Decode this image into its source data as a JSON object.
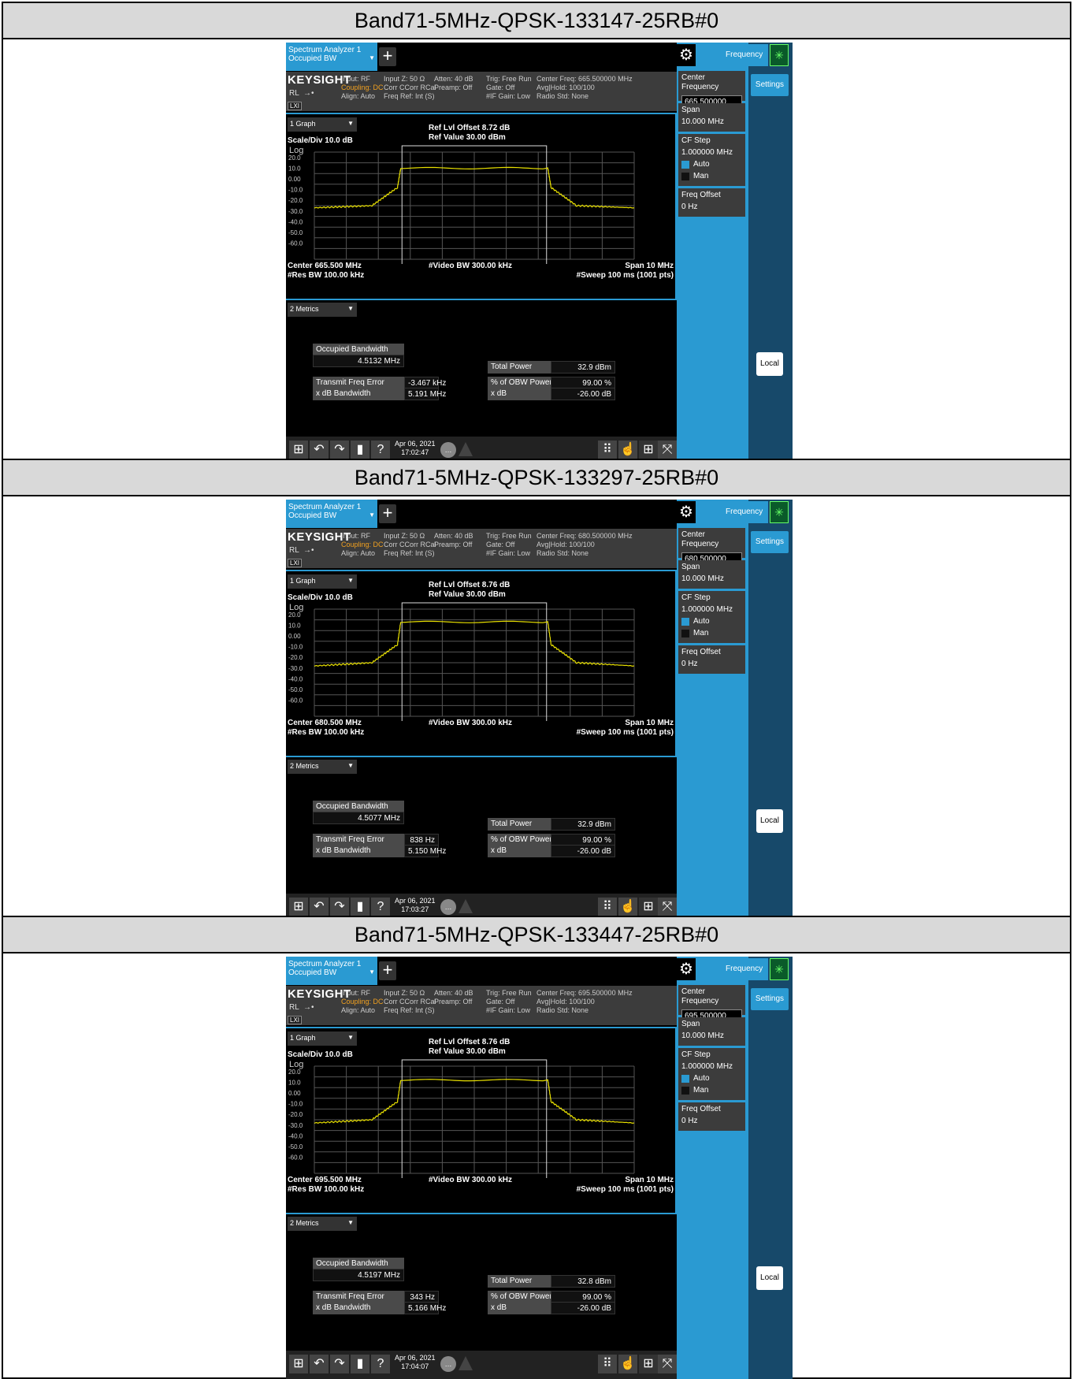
{
  "bands": [
    {
      "title": "Band71-5MHz-QPSK-133147-25RB#0",
      "app_tab": [
        "Spectrum Analyzer 1",
        "Occupied BW"
      ],
      "info": {
        "brand": "KEYSIGHT",
        "rl": "RL",
        "lxi": "LXI",
        "col1": [
          "Input: RF",
          "Coupling: DC",
          "Align: Auto"
        ],
        "col2": [
          "Input Z: 50 Ω",
          "Corr CCorr RCal",
          "Freq Ref: Int (S)"
        ],
        "col3": [
          "Atten: 40 dB",
          "Preamp: Off"
        ],
        "col4": [
          "Trig: Free Run",
          "Gate: Off",
          "#IF Gain: Low"
        ],
        "col5": [
          "Center Freq: 665.500000 MHz",
          "Avg|Hold: 100/100",
          "Radio Std: None"
        ]
      },
      "graph": {
        "selector": "1 Graph",
        "ref_offset": "Ref Lvl Offset 8.72 dB",
        "ref_value": "Ref Value 30.00 dBm",
        "scale": "Scale/Div 10.0 dB",
        "log": "Log",
        "y_labels": [
          "20.0",
          "10.0",
          "0.00",
          "-10.0",
          "-20.0",
          "-30.0",
          "-40.0",
          "-50.0",
          "-60.0"
        ],
        "center": "Center 665.500 MHz",
        "res_bw": "#Res BW 100.00 kHz",
        "video_bw": "#Video BW 300.00 kHz",
        "span": "Span 10 MHz",
        "sweep": "#Sweep 100 ms (1001 pts)",
        "trace_color": "#e8e000"
      },
      "metrics": {
        "selector": "2 Metrics",
        "obw_label": "Occupied Bandwidth",
        "obw_value": "4.5132 MHz",
        "tfe_label": "Transmit Freq Error",
        "tfe_value": "-3.467 kHz",
        "xdbbw_label": "x dB Bandwidth",
        "xdbbw_value": "5.191 MHz",
        "tp_label": "Total Power",
        "tp_value": "32.9 dBm",
        "pobw_label": "% of OBW Power",
        "pobw_value": "99.00 %",
        "xdb_label": "x dB",
        "xdb_value": "-26.00 dB"
      },
      "taskbar": {
        "date": "Apr 06, 2021",
        "time": "17:02:47"
      },
      "panel": {
        "menu": "Frequency",
        "settings": "Settings",
        "cf_label": "Center Frequency",
        "cf_value": "665.500000 MHz",
        "span_label": "Span",
        "span_value": "10.000 MHz",
        "cfstep_label": "CF Step",
        "cfstep_value": "1.000000 MHz",
        "auto": "Auto",
        "man": "Man",
        "foffset_label": "Freq Offset",
        "foffset_value": "0 Hz",
        "local": "Local"
      }
    },
    {
      "title": "Band71-5MHz-QPSK-133297-25RB#0",
      "app_tab": [
        "Spectrum Analyzer 1",
        "Occupied BW"
      ],
      "info": {
        "brand": "KEYSIGHT",
        "rl": "RL",
        "lxi": "LXI",
        "col1": [
          "Input: RF",
          "Coupling: DC",
          "Align: Auto"
        ],
        "col2": [
          "Input Z: 50 Ω",
          "Corr CCorr RCal",
          "Freq Ref: Int (S)"
        ],
        "col3": [
          "Atten: 40 dB",
          "Preamp: Off"
        ],
        "col4": [
          "Trig: Free Run",
          "Gate: Off",
          "#IF Gain: Low"
        ],
        "col5": [
          "Center Freq: 680.500000 MHz",
          "Avg|Hold: 100/100",
          "Radio Std: None"
        ]
      },
      "graph": {
        "selector": "1 Graph",
        "ref_offset": "Ref Lvl Offset 8.76 dB",
        "ref_value": "Ref Value 30.00 dBm",
        "scale": "Scale/Div 10.0 dB",
        "log": "Log",
        "y_labels": [
          "20.0",
          "10.0",
          "0.00",
          "-10.0",
          "-20.0",
          "-30.0",
          "-40.0",
          "-50.0",
          "-60.0"
        ],
        "center": "Center 680.500 MHz",
        "res_bw": "#Res BW 100.00 kHz",
        "video_bw": "#Video BW 300.00 kHz",
        "span": "Span 10 MHz",
        "sweep": "#Sweep 100 ms (1001 pts)",
        "trace_color": "#e8e000"
      },
      "metrics": {
        "selector": "2 Metrics",
        "obw_label": "Occupied Bandwidth",
        "obw_value": "4.5077 MHz",
        "tfe_label": "Transmit Freq Error",
        "tfe_value": "838 Hz",
        "xdbbw_label": "x dB Bandwidth",
        "xdbbw_value": "5.150 MHz",
        "tp_label": "Total Power",
        "tp_value": "32.9 dBm",
        "pobw_label": "% of OBW Power",
        "pobw_value": "99.00 %",
        "xdb_label": "x dB",
        "xdb_value": "-26.00 dB"
      },
      "taskbar": {
        "date": "Apr 06, 2021",
        "time": "17:03:27"
      },
      "panel": {
        "menu": "Frequency",
        "settings": "Settings",
        "cf_label": "Center Frequency",
        "cf_value": "680.500000 MHz",
        "span_label": "Span",
        "span_value": "10.000 MHz",
        "cfstep_label": "CF Step",
        "cfstep_value": "1.000000 MHz",
        "auto": "Auto",
        "man": "Man",
        "foffset_label": "Freq Offset",
        "foffset_value": "0 Hz",
        "local": "Local"
      }
    },
    {
      "title": "Band71-5MHz-QPSK-133447-25RB#0",
      "app_tab": [
        "Spectrum Analyzer 1",
        "Occupied BW"
      ],
      "info": {
        "brand": "KEYSIGHT",
        "rl": "RL",
        "lxi": "LXI",
        "col1": [
          "Input: RF",
          "Coupling: DC",
          "Align: Auto"
        ],
        "col2": [
          "Input Z: 50 Ω",
          "Corr CCorr RCal",
          "Freq Ref: Int (S)"
        ],
        "col3": [
          "Atten: 40 dB",
          "Preamp: Off"
        ],
        "col4": [
          "Trig: Free Run",
          "Gate: Off",
          "#IF Gain: Low"
        ],
        "col5": [
          "Center Freq: 695.500000 MHz",
          "Avg|Hold: 100/100",
          "Radio Std: None"
        ]
      },
      "graph": {
        "selector": "1 Graph",
        "ref_offset": "Ref Lvl Offset 8.76 dB",
        "ref_value": "Ref Value 30.00 dBm",
        "scale": "Scale/Div 10.0 dB",
        "log": "Log",
        "y_labels": [
          "20.0",
          "10.0",
          "0.00",
          "-10.0",
          "-20.0",
          "-30.0",
          "-40.0",
          "-50.0",
          "-60.0"
        ],
        "center": "Center 695.500 MHz",
        "res_bw": "#Res BW 100.00 kHz",
        "video_bw": "#Video BW 300.00 kHz",
        "span": "Span 10 MHz",
        "sweep": "#Sweep 100 ms (1001 pts)",
        "trace_color": "#e8e000"
      },
      "metrics": {
        "selector": "2 Metrics",
        "obw_label": "Occupied Bandwidth",
        "obw_value": "4.5197 MHz",
        "tfe_label": "Transmit Freq Error",
        "tfe_value": "343 Hz",
        "xdbbw_label": "x dB Bandwidth",
        "xdbbw_value": "5.166 MHz",
        "tp_label": "Total Power",
        "tp_value": "32.8 dBm",
        "pobw_label": "% of OBW Power",
        "pobw_value": "99.00 %",
        "xdb_label": "x dB",
        "xdb_value": "-26.00 dB"
      },
      "taskbar": {
        "date": "Apr 06, 2021",
        "time": "17:04:07"
      },
      "panel": {
        "menu": "Frequency",
        "settings": "Settings",
        "cf_label": "Center Frequency",
        "cf_value": "695.500000 MHz",
        "span_label": "Span",
        "span_value": "10.000 MHz",
        "cfstep_label": "CF Step",
        "cfstep_value": "1.000000 MHz",
        "auto": "Auto",
        "man": "Man",
        "foffset_label": "Freq Offset",
        "foffset_value": "0 Hz",
        "local": "Local"
      }
    }
  ],
  "chart_data": [
    {
      "type": "line",
      "x": [
        -5,
        -3.2,
        -2.4,
        -2.3,
        2.3,
        2.4,
        3.2,
        5
      ],
      "series": [
        {
          "values": [
            -22,
            -20,
            -3,
            15,
            15,
            -3,
            -20,
            -22
          ]
        }
      ],
      "ylim": [
        -70,
        30
      ]
    },
    {
      "type": "line",
      "x": [
        -5,
        -3.2,
        -2.4,
        -2.3,
        2.3,
        2.4,
        3.2,
        5
      ],
      "series": [
        {
          "values": [
            -23,
            -20,
            -3,
            18,
            18,
            -3,
            -20,
            -23
          ]
        }
      ],
      "ylim": [
        -70,
        30
      ]
    },
    {
      "type": "line",
      "x": [
        -5,
        -3.2,
        -2.4,
        -2.3,
        2.3,
        2.4,
        3.2,
        5
      ],
      "series": [
        {
          "values": [
            -23,
            -20,
            -3,
            17,
            17,
            -3,
            -20,
            -23
          ]
        }
      ],
      "ylim": [
        -70,
        30
      ]
    }
  ]
}
